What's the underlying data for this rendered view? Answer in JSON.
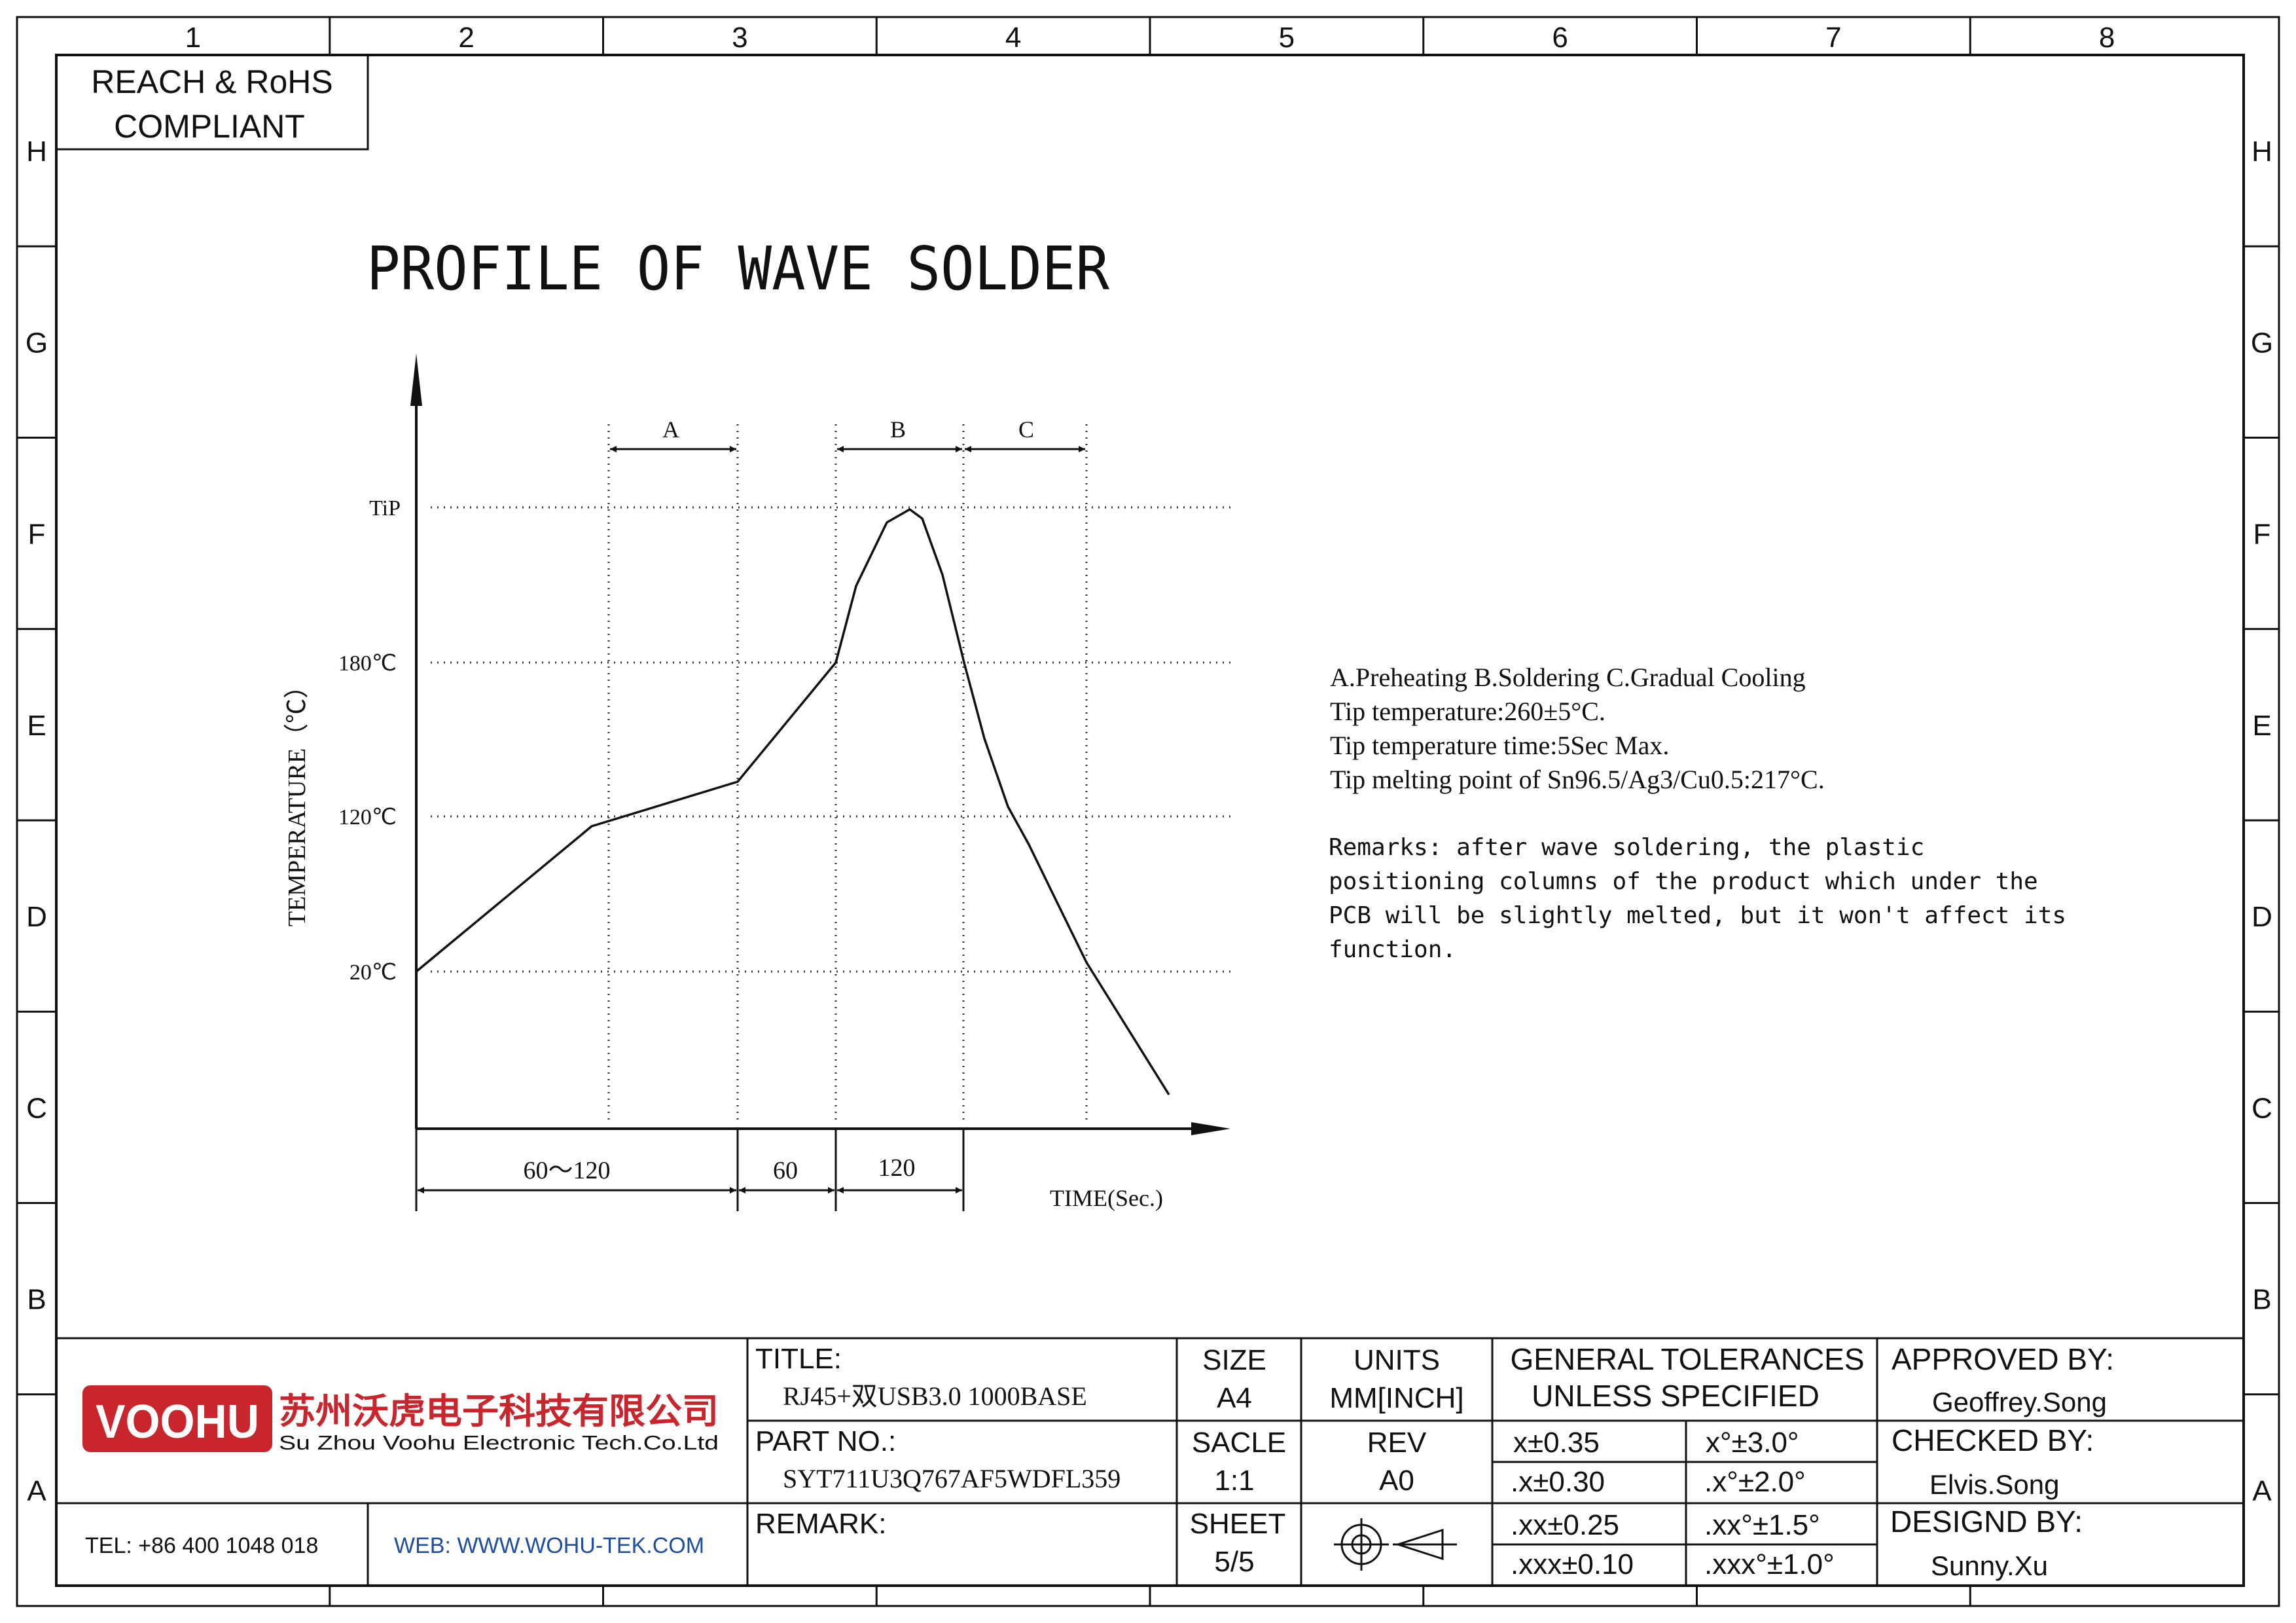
{
  "frame": {
    "columns": [
      "1",
      "2",
      "3",
      "4",
      "5",
      "6",
      "7",
      "8"
    ],
    "rows": [
      "H",
      "G",
      "F",
      "E",
      "D",
      "C",
      "B",
      "A"
    ]
  },
  "compliance": {
    "line1": "REACH & RoHS",
    "line2": "COMPLIANT"
  },
  "drawing_title": "PROFILE OF WAVE SOLDER",
  "chart_data": {
    "type": "line",
    "title": "PROFILE OF WAVE SOLDER",
    "ylabel": "TEMPERATURE（℃）",
    "xlabel": "TIME(Sec.)",
    "y_ticks": [
      "TiP",
      "180℃",
      "120℃",
      "20℃"
    ],
    "zones": [
      {
        "label": "A",
        "name": "Preheating"
      },
      {
        "label": "B",
        "name": "Soldering"
      },
      {
        "label": "C",
        "name": "Gradual Cooling"
      }
    ],
    "time_segments": [
      "60～120",
      "60",
      "120"
    ],
    "grid": "dotted"
  },
  "notes": {
    "line1": "A.Preheating  B.Soldering  C.Gradual Cooling",
    "line2": "Tip temperature:260±5°C.",
    "line3": "Tip temperature time:5Sec Max.",
    "line4": "Tip melting point of Sn96.5/Ag3/Cu0.5:217°C."
  },
  "remarks": {
    "line1": "Remarks: after wave soldering, the plastic",
    "line2": "positioning columns of the product  which under the",
    "line3": "PCB will be slightly melted, but it won't affect its",
    "line4": "function."
  },
  "company": {
    "logo": "VOOHU",
    "name_cn": "苏州沃虎电子科技有限公司",
    "name_en": "Su Zhou Voohu Electronic Tech.Co.Ltd",
    "tel": "TEL: +86 400 1048 018",
    "web": "WEB: WWW.WOHU-TEK.COM",
    "brand_color": "#c8252c",
    "web_color": "#1f4e9c"
  },
  "title_block": {
    "title_label": "TITLE:",
    "title_value": "RJ45+双USB3.0 1000BASE",
    "part_label": "PART NO.:",
    "part_value": "SYT711U3Q767AF5WDFL359",
    "remark_label": "REMARK:",
    "size_label": "SIZE",
    "size_value": "A4",
    "units_label": "UNITS",
    "units_value": "MM[INCH]",
    "scale_label": "SACLE",
    "scale_value": "1:1",
    "rev_label": "REV",
    "rev_value": "A0",
    "sheet_label": "SHEET",
    "sheet_value": "5/5",
    "projection_icon": "first-angle-projection-icon",
    "tol_header1": "GENERAL TOLERANCES",
    "tol_header2": "UNLESS SPECIFIED",
    "tolerances": [
      [
        "x±0.35",
        "x°±3.0°"
      ],
      [
        ".x±0.30",
        ".x°±2.0°"
      ],
      [
        ".xx±0.25",
        ".xx°±1.5°"
      ],
      [
        ".xxx±0.10",
        ".xxx°±1.0°"
      ]
    ],
    "approved_label": "APPROVED BY:",
    "approved_value": "Geoffrey.Song",
    "checked_label": "CHECKED BY:",
    "checked_value": "Elvis.Song",
    "designed_label": "DESIGND BY:",
    "designed_value": "Sunny.Xu"
  }
}
